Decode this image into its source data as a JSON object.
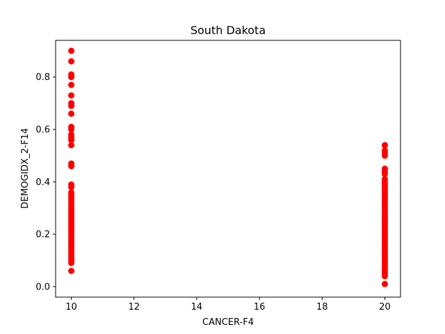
{
  "chart_data": {
    "type": "scatter",
    "title": "South Dakota",
    "xlabel": "CANCER-F4",
    "ylabel": "DEMOGIDX_2-F14",
    "xlim": [
      9.5,
      20.5
    ],
    "ylim": [
      -0.04,
      0.94
    ],
    "x_ticks": [
      10,
      12,
      14,
      16,
      18,
      20
    ],
    "x_tick_labels": [
      "10",
      "12",
      "14",
      "16",
      "18",
      "20"
    ],
    "y_ticks": [
      0.0,
      0.2,
      0.4,
      0.6,
      0.8
    ],
    "y_tick_labels": [
      "0.0",
      "0.2",
      "0.4",
      "0.6",
      "0.8"
    ],
    "grid": false,
    "marker_color": "#ff0000",
    "series": [
      {
        "x": [
          10,
          10,
          10,
          10,
          10,
          10,
          10,
          10,
          10,
          10,
          10,
          10,
          10,
          10,
          10,
          10,
          10,
          10,
          10,
          10,
          10,
          10,
          10,
          10,
          10,
          10,
          10,
          10,
          10,
          10,
          10,
          10,
          10,
          10,
          10,
          10,
          10,
          10,
          10,
          10,
          10,
          10,
          10,
          10,
          10,
          10,
          10,
          10,
          10,
          10,
          10
        ],
        "y": [
          0.9,
          0.86,
          0.81,
          0.8,
          0.77,
          0.73,
          0.7,
          0.69,
          0.66,
          0.61,
          0.6,
          0.58,
          0.57,
          0.56,
          0.54,
          0.47,
          0.46,
          0.39,
          0.38,
          0.36,
          0.35,
          0.34,
          0.33,
          0.32,
          0.31,
          0.3,
          0.29,
          0.28,
          0.27,
          0.26,
          0.25,
          0.24,
          0.23,
          0.22,
          0.21,
          0.2,
          0.19,
          0.18,
          0.17,
          0.16,
          0.15,
          0.14,
          0.13,
          0.12,
          0.11,
          0.1,
          0.09,
          0.06,
          0.29,
          0.24,
          0.17
        ]
      },
      {
        "x": [
          20,
          20,
          20,
          20,
          20,
          20,
          20,
          20,
          20,
          20,
          20,
          20,
          20,
          20,
          20,
          20,
          20,
          20,
          20,
          20,
          20,
          20,
          20,
          20,
          20,
          20,
          20,
          20,
          20,
          20,
          20,
          20,
          20,
          20,
          20,
          20,
          20,
          20,
          20,
          20,
          20,
          20,
          20,
          20,
          20,
          20,
          20,
          20,
          20,
          20,
          20,
          20,
          20
        ],
        "y": [
          0.54,
          0.52,
          0.51,
          0.5,
          0.45,
          0.43,
          0.41,
          0.4,
          0.39,
          0.37,
          0.36,
          0.35,
          0.34,
          0.33,
          0.32,
          0.31,
          0.3,
          0.29,
          0.28,
          0.27,
          0.26,
          0.25,
          0.24,
          0.23,
          0.22,
          0.21,
          0.2,
          0.19,
          0.18,
          0.17,
          0.16,
          0.15,
          0.14,
          0.13,
          0.12,
          0.11,
          0.1,
          0.09,
          0.08,
          0.07,
          0.06,
          0.05,
          0.04,
          0.01,
          0.38,
          0.26,
          0.22,
          0.18,
          0.14,
          0.1,
          0.36,
          0.31,
          0.44
        ]
      }
    ]
  }
}
